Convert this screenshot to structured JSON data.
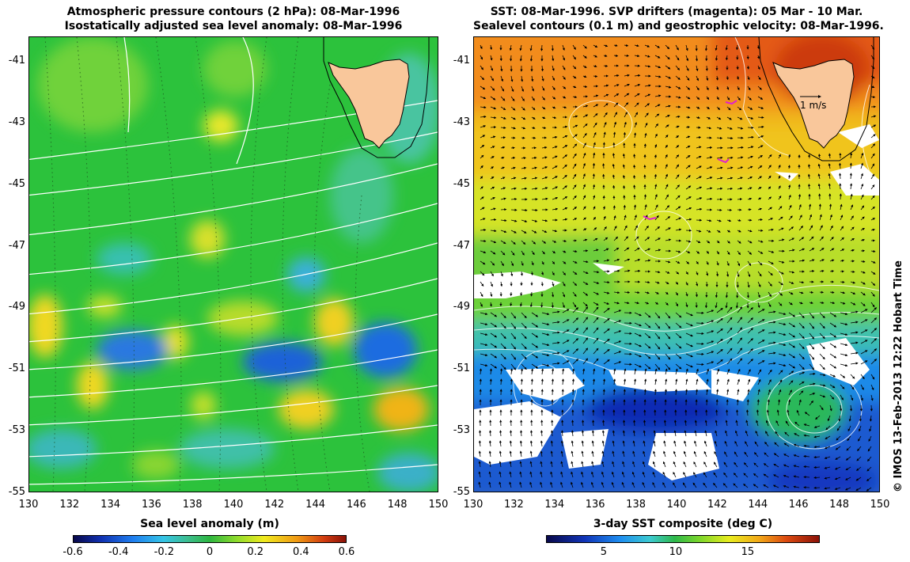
{
  "left_panel": {
    "title_line1": "Atmospheric pressure contours (2 hPa): 08-Mar-1996",
    "title_line2": "Isostatically adjusted sea level anomaly: 08-Mar-1996",
    "colorbar_title": "Sea level anomaly (m)",
    "colorbar_ticks": [
      "-0.6",
      "-0.4",
      "-0.2",
      "0",
      "0.2",
      "0.4",
      "0.6"
    ],
    "colorbar_range": [
      -0.6,
      0.6
    ]
  },
  "right_panel": {
    "title_line1": "SST: 08-Mar-1996. SVP drifters (magenta): 05 Mar - 10 Mar.",
    "title_line2": "Sealevel contours (0.1 m) and geostrophic velocity: 08-Mar-1996.",
    "colorbar_title": "3-day SST composite (deg C)",
    "colorbar_ticks": [
      "5",
      "10",
      "15"
    ],
    "colorbar_tick_values": [
      5,
      10,
      15
    ],
    "colorbar_range": [
      1,
      20
    ],
    "velocity_scale_label": "1 m/s"
  },
  "axes": {
    "x_ticks": [
      "130",
      "132",
      "134",
      "136",
      "138",
      "140",
      "142",
      "144",
      "146",
      "148",
      "150"
    ],
    "y_ticks": [
      "-41",
      "-43",
      "-45",
      "-47",
      "-49",
      "-51",
      "-53",
      "-55"
    ],
    "lon_range": [
      130,
      150
    ],
    "lat_range": [
      -55,
      -40.2
    ]
  },
  "credit": "© IMOS 13-Feb-2013 12:22 Hobart Time",
  "colors": {
    "land": "#f9c79b",
    "left_background": "#29c23c",
    "drifters": "#e020d0"
  }
}
